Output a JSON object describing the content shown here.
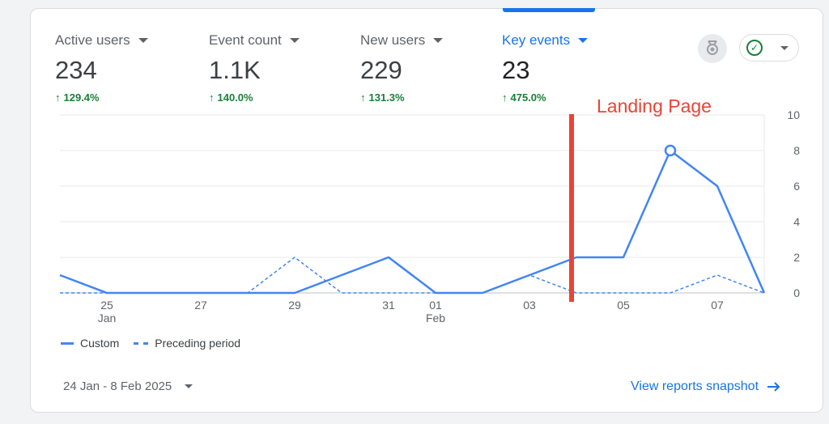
{
  "metrics": [
    {
      "label": "Active users",
      "value": "234",
      "change": "129.4%"
    },
    {
      "label": "Event count",
      "value": "1.1K",
      "change": "140.0%"
    },
    {
      "label": "New users",
      "value": "229",
      "change": "131.3%"
    },
    {
      "label": "Key events",
      "value": "23",
      "change": "475.0%"
    }
  ],
  "annotation": "Landing Page",
  "legend": {
    "custom": "Custom",
    "preceding": "Preceding period"
  },
  "footer": {
    "date_range": "24 Jan - 8 Feb 2025",
    "snapshot_link": "View reports snapshot"
  },
  "colors": {
    "accent": "#1a73e8",
    "series": "#4285f4",
    "positive": "#188038",
    "annotation": "#ea4335"
  },
  "icons": {
    "badge": "award-ribbon-icon",
    "status": "check-circle-icon",
    "link_arrow": "arrow-right-icon"
  },
  "chart_data": {
    "type": "line",
    "x": [
      "24 Jan",
      "25 Jan",
      "26 Jan",
      "27 Jan",
      "28 Jan",
      "29 Jan",
      "30 Jan",
      "31 Jan",
      "01 Feb",
      "02 Feb",
      "03 Feb",
      "04 Feb",
      "05 Feb",
      "06 Feb",
      "07 Feb",
      "08 Feb"
    ],
    "xticks": [
      {
        "label": "25",
        "sub": "Jan",
        "index": 1
      },
      {
        "label": "27",
        "sub": "",
        "index": 3
      },
      {
        "label": "29",
        "sub": "",
        "index": 5
      },
      {
        "label": "31",
        "sub": "",
        "index": 7
      },
      {
        "label": "01",
        "sub": "Feb",
        "index": 8
      },
      {
        "label": "03",
        "sub": "",
        "index": 10
      },
      {
        "label": "05",
        "sub": "",
        "index": 12
      },
      {
        "label": "07",
        "sub": "",
        "index": 14
      }
    ],
    "series": [
      {
        "name": "Custom",
        "style": "solid",
        "values": [
          1,
          0,
          0,
          0,
          0,
          0,
          1,
          2,
          0,
          0,
          1,
          2,
          2,
          8,
          6,
          0
        ]
      },
      {
        "name": "Preceding period",
        "style": "dashed",
        "values": [
          0,
          0,
          0,
          0,
          0,
          2,
          0,
          0,
          0,
          0,
          1,
          0,
          0,
          0,
          1,
          0
        ]
      }
    ],
    "highlight_index": 13,
    "ylim": [
      0,
      10
    ],
    "yticks": [
      0,
      2,
      4,
      6,
      8,
      10
    ],
    "grid": true
  }
}
